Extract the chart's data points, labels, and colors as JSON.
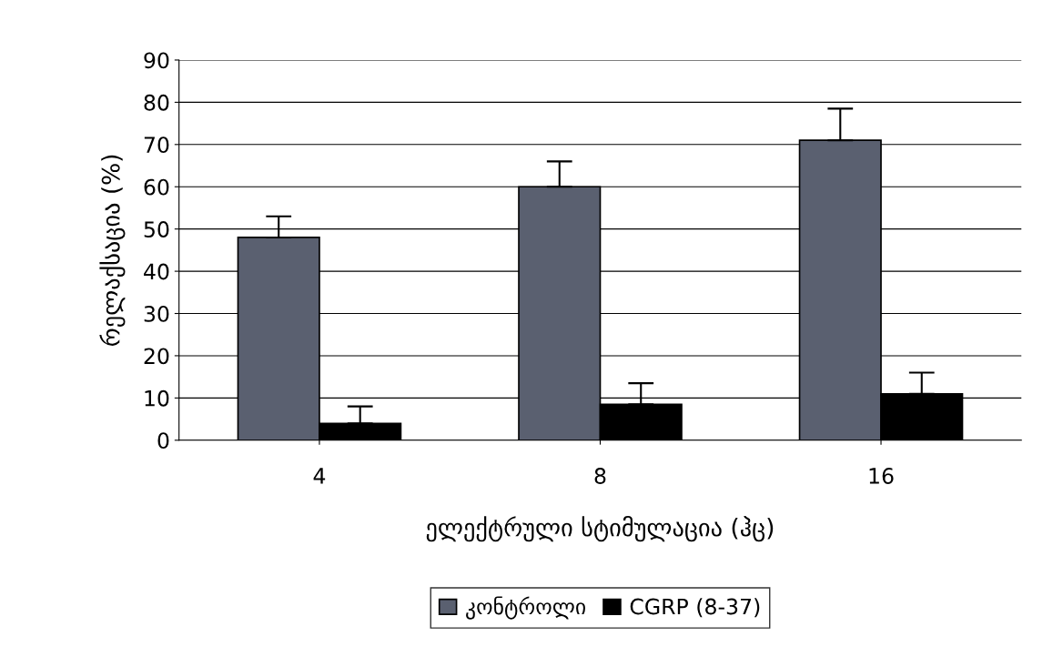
{
  "chart_data": {
    "type": "bar",
    "xlabel": "ელექტრული სტიმულაცია (ჰც)",
    "ylabel": "რელაქსაცია (%)",
    "categories": [
      "4",
      "8",
      "16"
    ],
    "series": [
      {
        "name": "კონტროლი",
        "color": "#5a6070",
        "values": [
          48,
          60,
          71
        ],
        "errors": [
          5,
          6,
          7.5
        ]
      },
      {
        "name": "CGRP (8-37)",
        "color": "#000000",
        "values": [
          4,
          8.5,
          11
        ],
        "errors": [
          4,
          5,
          5
        ]
      }
    ],
    "ylim": [
      0,
      90
    ],
    "yticks": [
      0,
      10,
      20,
      30,
      40,
      50,
      60,
      70,
      80,
      90
    ],
    "grid": "y",
    "legend": "bottom"
  }
}
